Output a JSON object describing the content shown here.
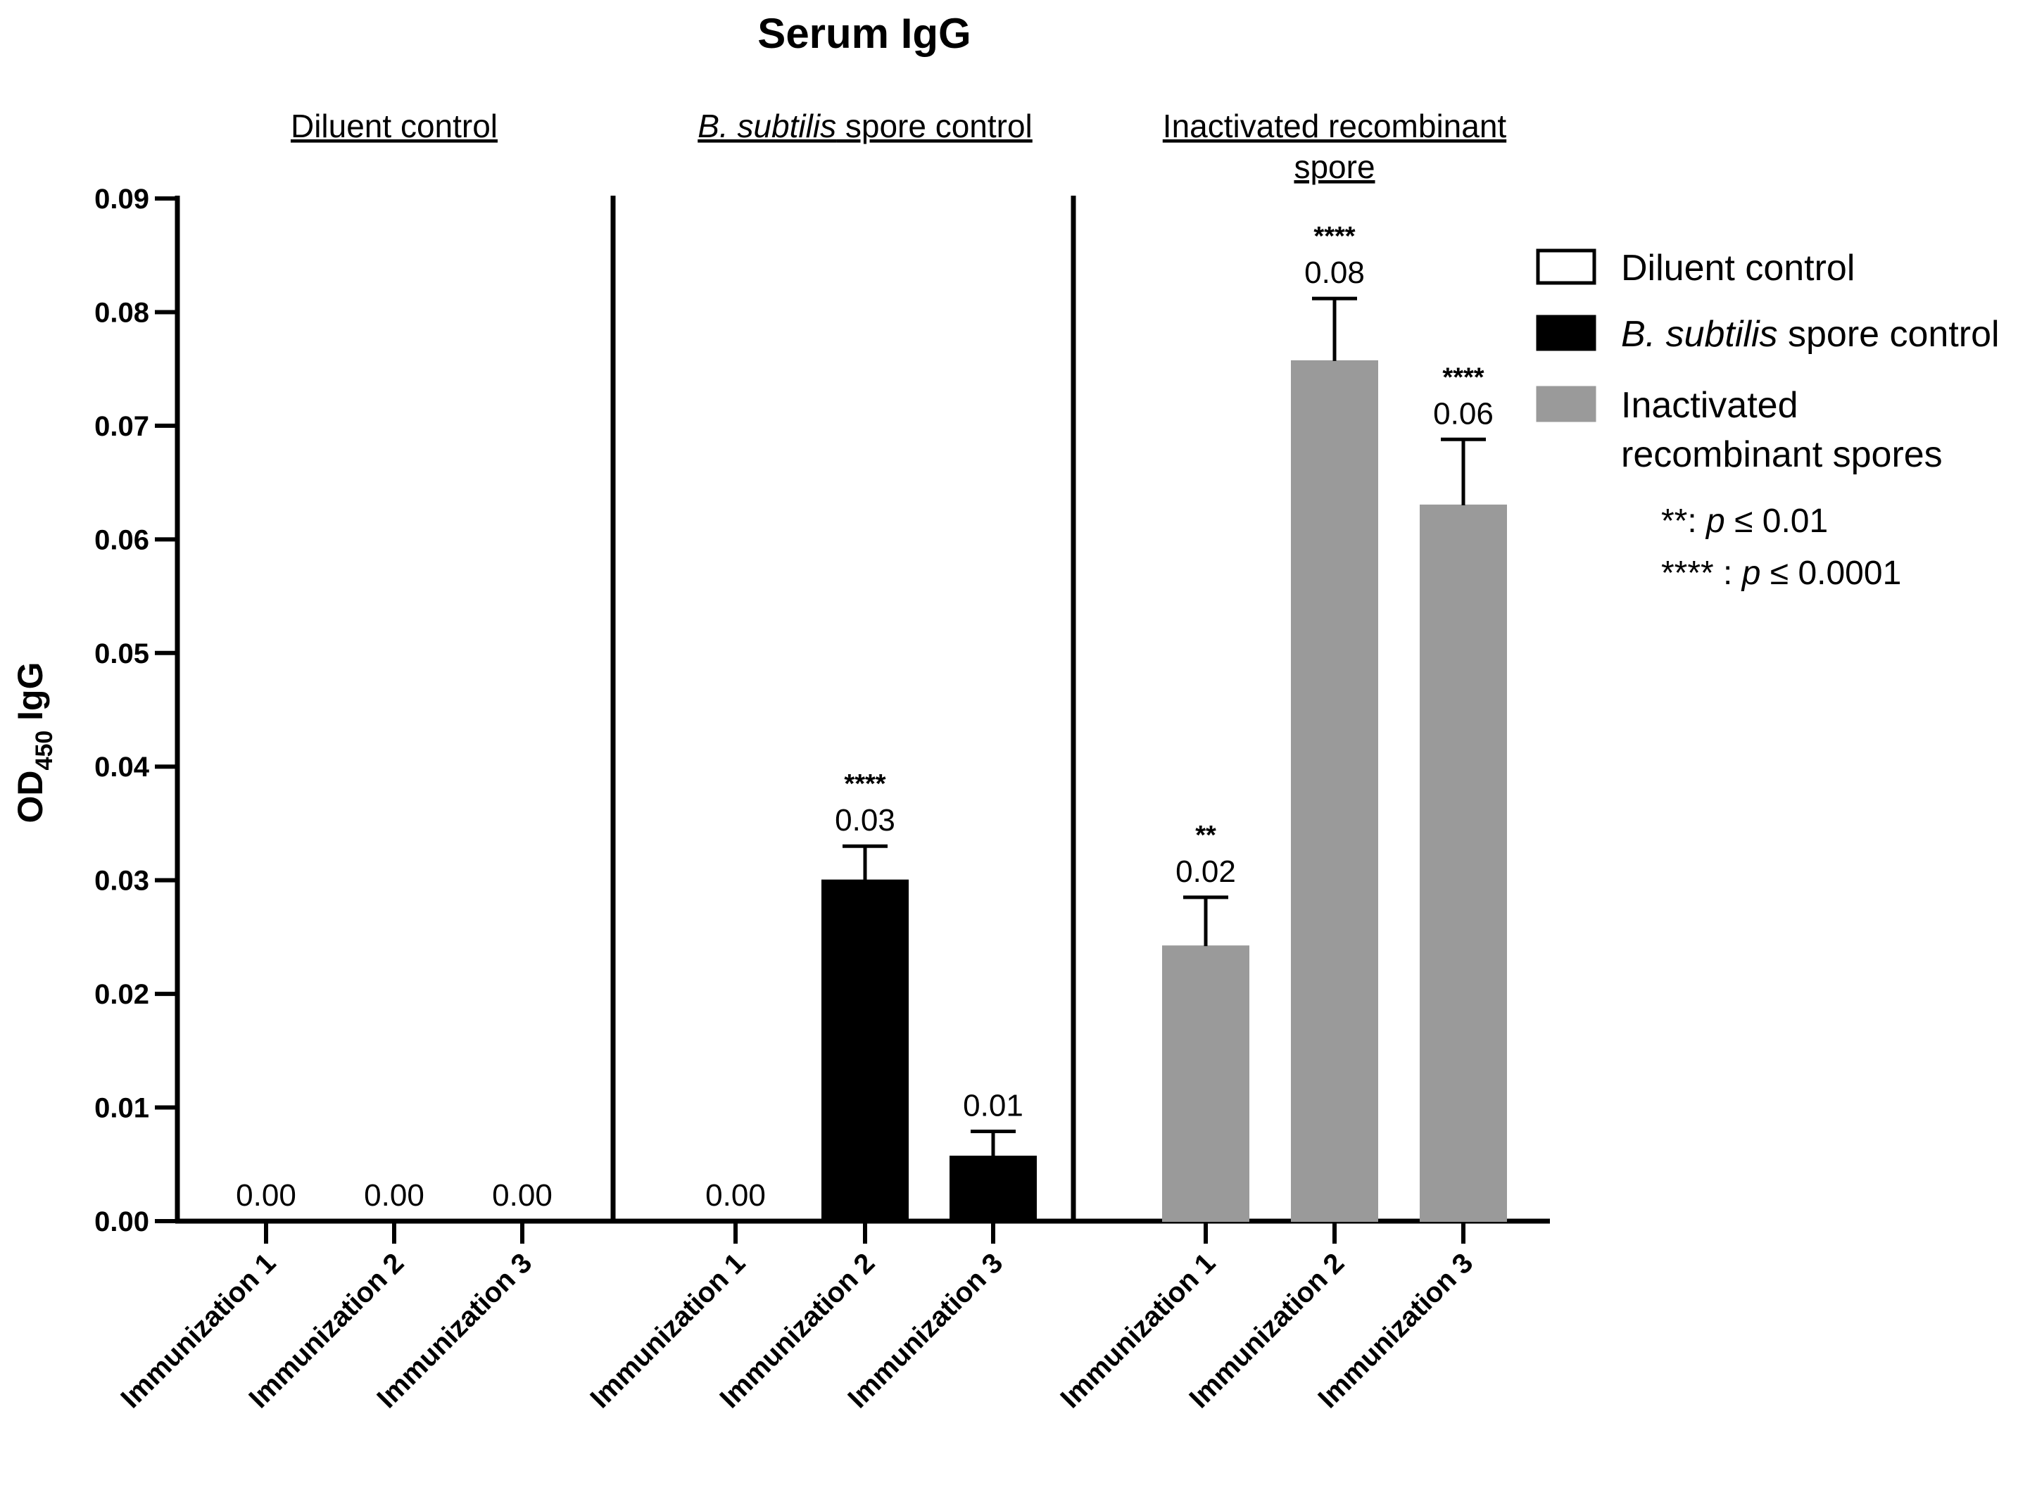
{
  "chart_data": {
    "type": "bar",
    "title": "Serum IgG",
    "ylabel_main": "OD",
    "ylabel_sub": "450",
    "ylabel_tail": " IgG",
    "ylim": [
      0,
      0.09
    ],
    "yticks": [
      "0.00",
      "0.01",
      "0.02",
      "0.03",
      "0.04",
      "0.05",
      "0.06",
      "0.07",
      "0.08",
      "0.09"
    ],
    "grid": false,
    "legend_position": "right",
    "groups": [
      {
        "label_italic": "",
        "label_lines": [
          "Diluent control"
        ],
        "series": "Diluent control",
        "bars": [
          {
            "category": "Immunization 1",
            "value": 0.0,
            "error": 0,
            "label": "0.00",
            "sig": ""
          },
          {
            "category": "Immunization 2",
            "value": 0.0,
            "error": 0,
            "label": "0.00",
            "sig": ""
          },
          {
            "category": "Immunization 3",
            "value": 0.0,
            "error": 0,
            "label": "0.00",
            "sig": ""
          }
        ]
      },
      {
        "label_italic": "B. subtilis",
        "label_lines": [
          " spore control"
        ],
        "series": "B. subtilis spore control",
        "bars": [
          {
            "category": "Immunization 1",
            "value": 0.0,
            "error": 0,
            "label": "0.00",
            "sig": ""
          },
          {
            "category": "Immunization 2",
            "value": 0.03,
            "error": 0.003,
            "label": "0.03",
            "sig": "****"
          },
          {
            "category": "Immunization 3",
            "value": 0.0057,
            "error": 0.0022,
            "label": "0.01",
            "sig": ""
          }
        ]
      },
      {
        "label_italic": "",
        "label_lines": [
          "Inactivated recombinant",
          "spore"
        ],
        "series": "Inactivated recombinant spores",
        "bars": [
          {
            "category": "Immunization 1",
            "value": 0.0242,
            "error": 0.0043,
            "label": "0.02",
            "sig": "**"
          },
          {
            "category": "Immunization 2",
            "value": 0.0757,
            "error": 0.0055,
            "label": "0.08",
            "sig": "****"
          },
          {
            "category": "Immunization 3",
            "value": 0.063,
            "error": 0.0058,
            "label": "0.06",
            "sig": "****"
          }
        ]
      }
    ],
    "legend": [
      {
        "name_italic": "",
        "name_lines": [
          "Diluent control"
        ],
        "color": "#ffffff"
      },
      {
        "name_italic": "B. subtilis",
        "name_lines": [
          " spore control"
        ],
        "color": "#000000"
      },
      {
        "name_italic": "",
        "name_lines": [
          "Inactivated",
          "recombinant spores"
        ],
        "color": "#9a9a9a"
      }
    ],
    "notes": [
      {
        "stars": "**",
        "sep": ": ",
        "p": "p",
        "rest": " ≤ 0.01"
      },
      {
        "stars": "****",
        "sep": " : ",
        "p": "p",
        "rest": " ≤ 0.0001"
      }
    ],
    "colors": {
      "Diluent control": "#ffffff",
      "B. subtilis spore control": "#000000",
      "Inactivated recombinant spores": "#9a9a9a"
    }
  }
}
